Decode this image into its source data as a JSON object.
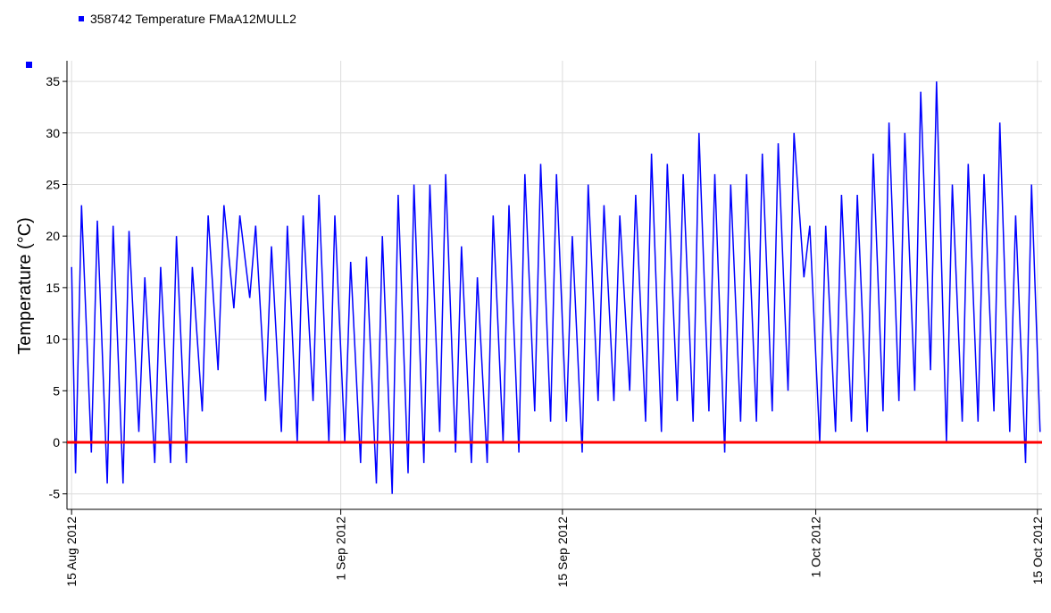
{
  "chart_data": {
    "type": "line",
    "legend": "358742  Temperature FMaA12MULL2",
    "ylabel": "Temperature (°C)",
    "ylim": [
      -6.5,
      37
    ],
    "yticks": [
      -5,
      0,
      5,
      10,
      15,
      20,
      25,
      30,
      35
    ],
    "xlim": [
      "2012-08-14T17:00",
      "2012-10-15T07:00"
    ],
    "xticks": [
      {
        "value": "2012-08-15",
        "label": "15 Aug 2012"
      },
      {
        "value": "2012-09-01",
        "label": "1 Sep 2012"
      },
      {
        "value": "2012-09-15",
        "label": "15 Sep 2012"
      },
      {
        "value": "2012-10-01",
        "label": "1 Oct 2012"
      },
      {
        "value": "2012-10-15",
        "label": "15 Oct 2012"
      }
    ],
    "grid": true,
    "hline": {
      "value": 0,
      "color": "#ff0000"
    },
    "x": [
      "2012-08-15T00:00",
      "2012-08-15T06:00",
      "2012-08-15T15:00",
      "2012-08-16T06:00",
      "2012-08-16T15:00",
      "2012-08-17T06:00",
      "2012-08-17T15:00",
      "2012-08-18T06:00",
      "2012-08-18T15:00",
      "2012-08-19T06:00",
      "2012-08-19T15:00",
      "2012-08-20T06:00",
      "2012-08-20T15:00",
      "2012-08-21T06:00",
      "2012-08-21T15:00",
      "2012-08-22T06:00",
      "2012-08-22T15:00",
      "2012-08-23T06:00",
      "2012-08-23T15:00",
      "2012-08-24T06:00",
      "2012-08-24T15:00",
      "2012-08-25T06:00",
      "2012-08-25T15:00",
      "2012-08-26T06:00",
      "2012-08-26T15:00",
      "2012-08-27T06:00",
      "2012-08-27T15:00",
      "2012-08-28T06:00",
      "2012-08-28T15:00",
      "2012-08-29T06:00",
      "2012-08-29T15:00",
      "2012-08-30T06:00",
      "2012-08-30T15:00",
      "2012-08-31T06:00",
      "2012-08-31T15:00",
      "2012-09-01T06:00",
      "2012-09-01T15:00",
      "2012-09-02T06:00",
      "2012-09-02T15:00",
      "2012-09-03T06:00",
      "2012-09-03T15:00",
      "2012-09-04T06:00",
      "2012-09-04T15:00",
      "2012-09-05T06:00",
      "2012-09-05T15:00",
      "2012-09-06T06:00",
      "2012-09-06T15:00",
      "2012-09-07T06:00",
      "2012-09-07T15:00",
      "2012-09-08T06:00",
      "2012-09-08T15:00",
      "2012-09-09T06:00",
      "2012-09-09T15:00",
      "2012-09-10T06:00",
      "2012-09-10T15:00",
      "2012-09-11T06:00",
      "2012-09-11T15:00",
      "2012-09-12T06:00",
      "2012-09-12T15:00",
      "2012-09-13T06:00",
      "2012-09-13T15:00",
      "2012-09-14T06:00",
      "2012-09-14T15:00",
      "2012-09-15T06:00",
      "2012-09-15T15:00",
      "2012-09-16T06:00",
      "2012-09-16T15:00",
      "2012-09-17T06:00",
      "2012-09-17T15:00",
      "2012-09-18T06:00",
      "2012-09-18T15:00",
      "2012-09-19T06:00",
      "2012-09-19T15:00",
      "2012-09-20T06:00",
      "2012-09-20T15:00",
      "2012-09-21T06:00",
      "2012-09-21T15:00",
      "2012-09-22T06:00",
      "2012-09-22T15:00",
      "2012-09-23T06:00",
      "2012-09-23T15:00",
      "2012-09-24T06:00",
      "2012-09-24T15:00",
      "2012-09-25T06:00",
      "2012-09-25T15:00",
      "2012-09-26T06:00",
      "2012-09-26T15:00",
      "2012-09-27T06:00",
      "2012-09-27T15:00",
      "2012-09-28T06:00",
      "2012-09-28T15:00",
      "2012-09-29T06:00",
      "2012-09-29T15:00",
      "2012-09-30T06:00",
      "2012-09-30T15:00",
      "2012-10-01T06:00",
      "2012-10-01T15:00",
      "2012-10-02T06:00",
      "2012-10-02T15:00",
      "2012-10-03T06:00",
      "2012-10-03T15:00",
      "2012-10-04T06:00",
      "2012-10-04T15:00",
      "2012-10-05T06:00",
      "2012-10-05T15:00",
      "2012-10-06T06:00",
      "2012-10-06T15:00",
      "2012-10-07T06:00",
      "2012-10-07T15:00",
      "2012-10-08T06:00",
      "2012-10-08T15:00",
      "2012-10-09T06:00",
      "2012-10-09T15:00",
      "2012-10-10T06:00",
      "2012-10-10T15:00",
      "2012-10-11T06:00",
      "2012-10-11T15:00",
      "2012-10-12T06:00",
      "2012-10-12T15:00",
      "2012-10-13T06:00",
      "2012-10-13T15:00",
      "2012-10-14T06:00",
      "2012-10-14T15:00",
      "2012-10-15T04:00"
    ],
    "series": [
      {
        "name": "358742  Temperature FMaA12MULL2",
        "color": "#0000ff",
        "values": [
          17,
          -3,
          23,
          -1,
          21.5,
          -4,
          21,
          -4,
          20.5,
          1,
          16,
          -2,
          17,
          -2,
          20,
          -2,
          17,
          3,
          22,
          7,
          23,
          13,
          22,
          14,
          21,
          4,
          19,
          1,
          21,
          0,
          22,
          4,
          24,
          0,
          22,
          0,
          17.5,
          -2,
          18,
          -4,
          20,
          -5,
          24,
          -3,
          25,
          -2,
          25,
          1,
          26,
          -1,
          19,
          -2,
          16,
          -2,
          22,
          0,
          23,
          -1,
          26,
          3,
          27,
          2,
          26,
          2,
          20,
          -1,
          25,
          4,
          23,
          4,
          22,
          5,
          24,
          2,
          28,
          1,
          27,
          4,
          26,
          2,
          30,
          3,
          26,
          -1,
          25,
          2,
          26,
          2,
          28,
          3,
          29,
          5,
          30,
          16,
          21,
          0,
          21,
          1,
          24,
          2,
          24,
          1,
          28,
          3,
          31,
          4,
          30,
          5,
          34,
          7,
          35,
          0,
          25,
          2,
          27,
          2,
          26,
          3,
          31,
          1,
          22,
          -2,
          25,
          1
        ]
      }
    ]
  }
}
